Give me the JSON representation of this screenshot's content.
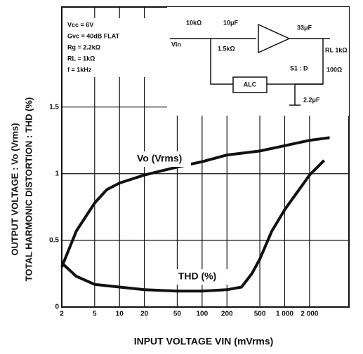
{
  "chart_data": {
    "type": "line",
    "x_label": "INPUT VOLTAGE VIN (mVrms)",
    "y_labels": [
      "OUTPUT VOLTAGE : Vo (Vrms)",
      "TOTAL HARMONIC DISTORTION : THD (%)"
    ],
    "log_x": true,
    "grid": true,
    "xlim": [
      2,
      6000
    ],
    "ylim": [
      0,
      2.25
    ],
    "xticks": [
      2,
      5,
      10,
      20,
      50,
      100,
      200,
      500,
      {
        "value": 1000,
        "label": "1 000"
      },
      {
        "value": 2000,
        "label": "2 000"
      }
    ],
    "yticks": [
      0,
      0.5,
      1,
      1.5
    ],
    "series": [
      {
        "name": "Vo (Vrms)",
        "color": "#111111",
        "x": [
          2,
          3,
          5,
          7,
          10,
          20,
          50,
          100,
          200,
          500,
          1000,
          2000,
          3500
        ],
        "values": [
          0.3,
          0.57,
          0.78,
          0.88,
          0.93,
          0.99,
          1.05,
          1.09,
          1.14,
          1.17,
          1.21,
          1.25,
          1.27
        ]
      },
      {
        "name": "THD (%)",
        "color": "#111111",
        "x": [
          2,
          3,
          5,
          10,
          20,
          50,
          100,
          200,
          300,
          400,
          500,
          700,
          1000,
          2000,
          3000
        ],
        "values": [
          0.33,
          0.23,
          0.17,
          0.15,
          0.13,
          0.12,
          0.12,
          0.13,
          0.15,
          0.25,
          0.36,
          0.57,
          0.73,
          0.99,
          1.1
        ]
      }
    ],
    "conditions": [
      "Vcc = 6V",
      "Gvc = 40dB FLAT",
      "Rg = 2.2kΩ",
      "RL = 1kΩ",
      "f = 1kHz"
    ],
    "circuit_labels": [
      "10kΩ",
      "10μF",
      "1.5kΩ",
      "33μF",
      "RL 1kΩ",
      "S1 : D",
      "100Ω",
      "ALC",
      "2.2μF",
      "Vin"
    ]
  }
}
